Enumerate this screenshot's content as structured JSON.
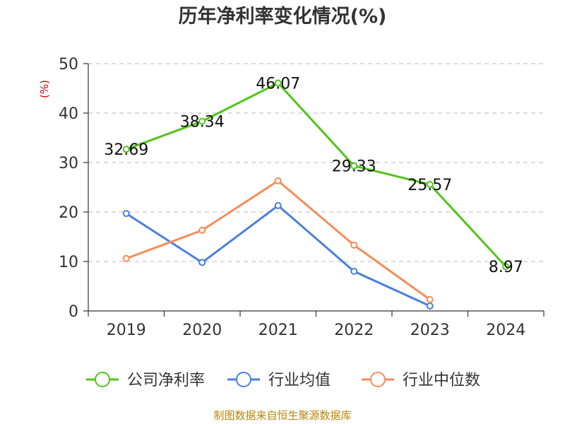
{
  "chart_data": {
    "type": "line",
    "title": "历年净利率变化情况(%)",
    "ylabel": "(%)",
    "categories": [
      "2019",
      "2020",
      "2021",
      "2022",
      "2023",
      "2024"
    ],
    "ylim": [
      0,
      50
    ],
    "yticks": [
      0,
      10,
      20,
      30,
      40,
      50
    ],
    "grid": "horizontal-dashed",
    "legend_position": "bottom",
    "series": [
      {
        "name": "公司净利率",
        "color": "#52c41a",
        "values": [
          32.69,
          38.34,
          46.07,
          29.33,
          25.57,
          8.97
        ],
        "data_labels": [
          "32.69",
          "38.34",
          "46.07",
          "29.33",
          "25.57",
          "8.97"
        ]
      },
      {
        "name": "行业均值",
        "color": "#4a7fdc",
        "values": [
          19.7,
          9.8,
          21.3,
          8.0,
          1.0,
          null
        ]
      },
      {
        "name": "行业中位数",
        "color": "#f58c5a",
        "values": [
          10.6,
          16.3,
          26.3,
          13.3,
          2.3,
          null
        ]
      }
    ]
  },
  "source_text": "制图数据来自恒生聚源数据库"
}
